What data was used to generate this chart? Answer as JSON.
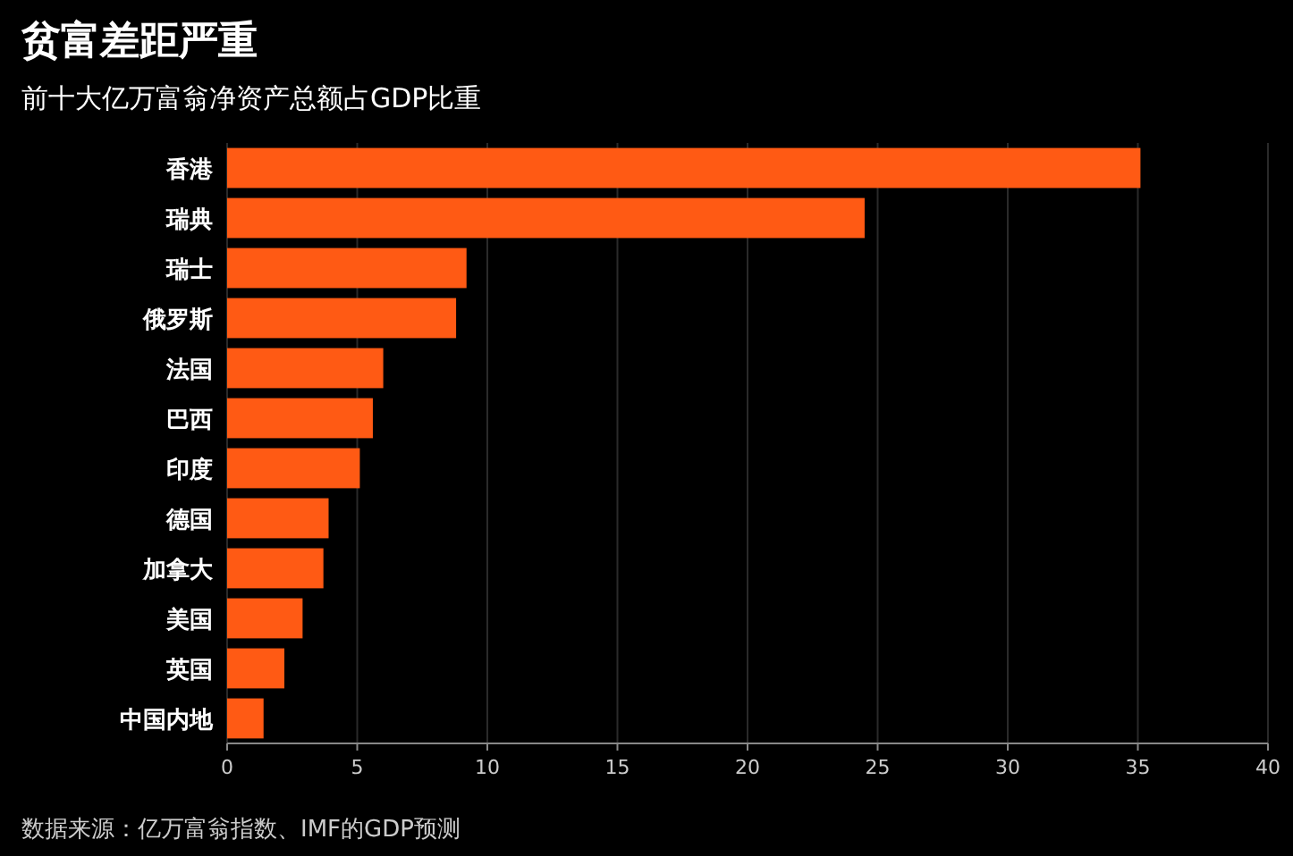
{
  "chart_data": {
    "type": "bar",
    "orientation": "horizontal",
    "title": "贫富差距严重",
    "subtitle": "前十大亿万富翁净资产总额占GDP比重",
    "categories": [
      "香港",
      "瑞典",
      "瑞士",
      "俄罗斯",
      "法国",
      "巴西",
      "印度",
      "德国",
      "加拿大",
      "美国",
      "英国",
      "中国内地"
    ],
    "values": [
      35.1,
      24.5,
      9.2,
      8.8,
      6.0,
      5.6,
      5.1,
      3.9,
      3.7,
      2.9,
      2.2,
      1.4
    ],
    "color": "#ff5a14",
    "xlim": [
      0,
      40
    ],
    "xticks": [
      0,
      5,
      10,
      15,
      20,
      25,
      30,
      35,
      40
    ],
    "grid": "x",
    "annotations": [
      "数据来源：亿万富翁指数、IMF的GDP预测"
    ]
  }
}
